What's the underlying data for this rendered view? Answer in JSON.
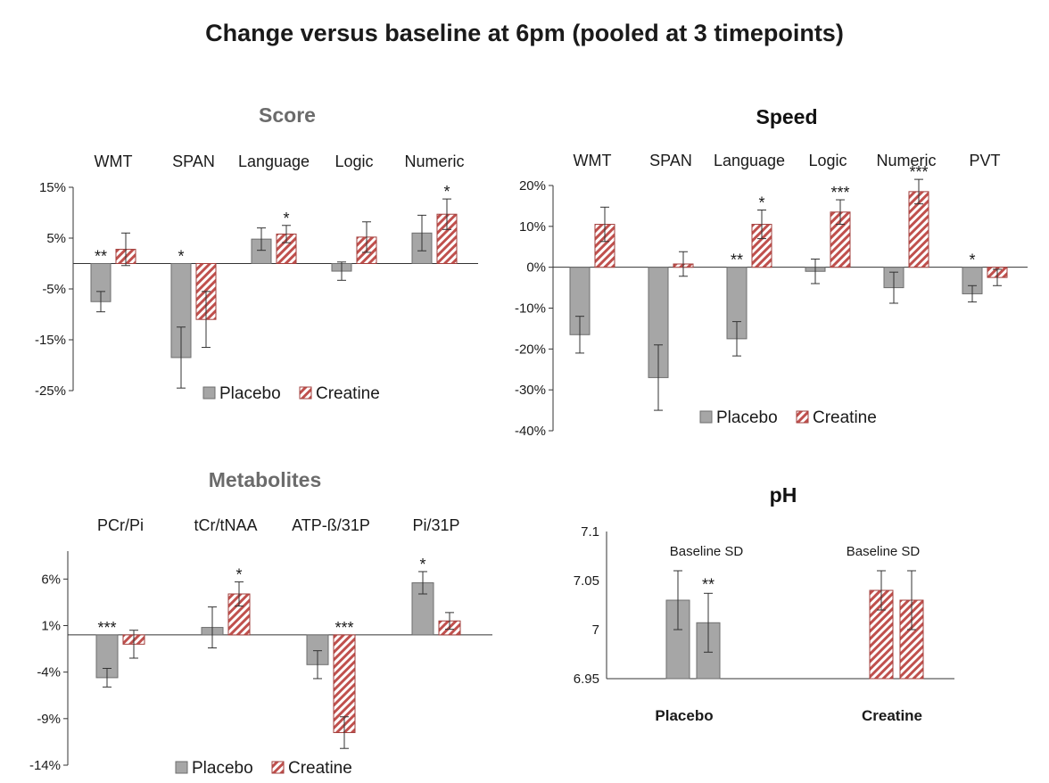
{
  "title": "Change versus baseline at 6pm  (pooled at 3 timepoints)",
  "colors": {
    "placebo_fill": "#a6a6a6",
    "placebo_stroke": "#6e6e6e",
    "creatine_stripe": "#c0504d",
    "creatine_stroke": "#a23f3c"
  },
  "chart_data": [
    {
      "type": "bar",
      "title": "Score",
      "title_color": "#6b6b6b",
      "categories": [
        "WMT",
        "SPAN",
        "Language",
        "Logic",
        "Numeric"
      ],
      "ylim": [
        -25,
        15
      ],
      "yticks": [
        15,
        5,
        -5,
        -15,
        -25
      ],
      "ytick_labels": [
        "15%",
        "5%",
        "-5%",
        "-15%",
        "-25%"
      ],
      "legend": [
        "Placebo",
        "Creatine"
      ],
      "legend_position": "bottom",
      "series": [
        {
          "name": "Placebo",
          "values": [
            -7.5,
            -18.5,
            4.8,
            -1.5,
            6
          ],
          "errors": [
            2,
            6,
            2.2,
            1.8,
            3.5
          ],
          "sig": [
            "**",
            "*",
            "",
            "",
            ""
          ]
        },
        {
          "name": "Creatine",
          "values": [
            2.8,
            -11,
            5.8,
            5.2,
            9.7
          ],
          "errors": [
            3.2,
            5.5,
            1.7,
            3,
            3
          ],
          "sig": [
            "",
            "",
            "*",
            "",
            "*"
          ]
        }
      ]
    },
    {
      "type": "bar",
      "title": "Speed",
      "title_color": "#111111",
      "categories": [
        "WMT",
        "SPAN",
        "Language",
        "Logic",
        "Numeric",
        "PVT"
      ],
      "ylim": [
        -40,
        20
      ],
      "yticks": [
        20,
        10,
        0,
        -10,
        -20,
        -30,
        -40
      ],
      "ytick_labels": [
        "20%",
        "10%",
        "0%",
        "-10%",
        "-20%",
        "-30%",
        "-40%"
      ],
      "legend": [
        "Placebo",
        "Creatine"
      ],
      "legend_position": "bottom",
      "series": [
        {
          "name": "Placebo",
          "values": [
            -16.5,
            -27,
            -17.5,
            -1,
            -5,
            -6.5
          ],
          "errors": [
            4.5,
            8,
            4.2,
            3,
            3.8,
            2
          ],
          "sig": [
            "",
            "",
            "**",
            "",
            "",
            "*"
          ]
        },
        {
          "name": "Creatine",
          "values": [
            10.5,
            0.8,
            10.5,
            13.5,
            18.5,
            -2.5
          ],
          "errors": [
            4.2,
            3,
            3.5,
            3,
            3,
            2
          ],
          "sig": [
            "",
            "",
            "*",
            "***",
            "***",
            ""
          ]
        }
      ]
    },
    {
      "type": "bar",
      "title": "Metabolites",
      "title_color": "#6b6b6b",
      "categories": [
        "PCr/Pi",
        "tCr/tNAA",
        "ATP-ß/31P",
        "Pi/31P"
      ],
      "ylim": [
        -14,
        9
      ],
      "yticks": [
        6,
        1,
        -4,
        -9,
        -14
      ],
      "ytick_labels": [
        "6%",
        "1%",
        "-4%",
        "-9%",
        "-14%"
      ],
      "legend": [
        "Placebo",
        "Creatine"
      ],
      "legend_position": "bottom",
      "series": [
        {
          "name": "Placebo",
          "values": [
            -4.6,
            0.8,
            -3.2,
            5.6
          ],
          "errors": [
            1,
            2.2,
            1.5,
            1.2
          ],
          "sig": [
            "***",
            "",
            "",
            "*"
          ]
        },
        {
          "name": "Creatine",
          "values": [
            -1,
            4.4,
            -10.5,
            1.5
          ],
          "errors": [
            1.5,
            1.3,
            1.7,
            0.9
          ],
          "sig": [
            "",
            "*",
            "***",
            ""
          ]
        }
      ]
    },
    {
      "type": "bar",
      "title": "pH",
      "title_color": "#111111",
      "categories": [
        "Placebo",
        "Creatine"
      ],
      "ylim": [
        6.95,
        7.1
      ],
      "yticks": [
        7.1,
        7.05,
        7,
        6.95
      ],
      "ytick_labels": [
        "7.1",
        "7.05",
        "7",
        "6.95"
      ],
      "annotation": "Baseline SD",
      "series": [
        {
          "name": "Baseline",
          "values": [
            7.03,
            7.04
          ],
          "errors": [
            0.03,
            0.02
          ],
          "sig": [
            "",
            ""
          ]
        },
        {
          "name": "6pm",
          "values": [
            7.007,
            7.03
          ],
          "errors": [
            0.03,
            0.03
          ],
          "sig": [
            "**",
            ""
          ]
        }
      ]
    }
  ]
}
